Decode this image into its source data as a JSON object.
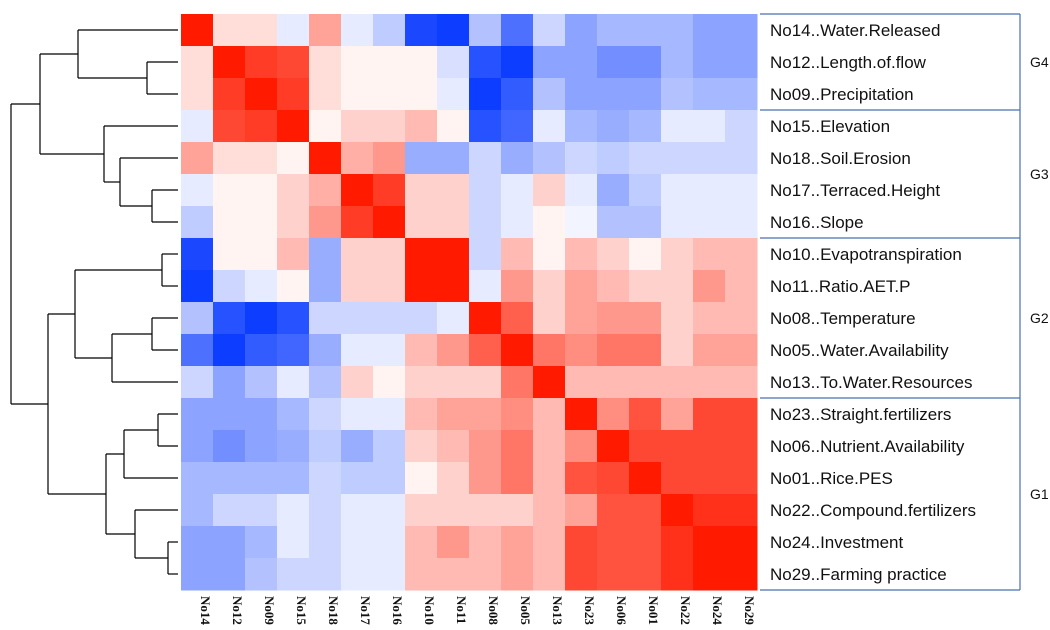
{
  "chart_data": {
    "type": "heatmap",
    "title": "",
    "xlabel": "",
    "ylabel": "",
    "colors": {
      "low": "#0033ff",
      "mid": "#ffffff",
      "high": "#ff1a00",
      "group_line": "#4a6fb5",
      "dendrogram": "#000000"
    },
    "row_labels": [
      "No14..Water.Released",
      "No12..Length.of.flow",
      "No09..Precipitation",
      "No15..Elevation",
      "No18..Soil.Erosion",
      "No17..Terraced.Height",
      "No16..Slope",
      "No10..Evapotranspiration",
      "No11..Ratio.AET.P",
      "No08..Temperature",
      "No05..Water.Availability",
      "No13..To.Water.Resources",
      "No23..Straight.fertilizers",
      "No06..Nutrient.Availability",
      "No01..Rice.PES",
      "No22..Compound.fertilizers",
      "No24..Investment",
      "No29..Farming practice"
    ],
    "col_labels": [
      "No14",
      "No12",
      "No09",
      "No15",
      "No18",
      "No17",
      "No16",
      "No10",
      "No11",
      "No08",
      "No05",
      "No13",
      "No23",
      "No06",
      "No01",
      "No22",
      "No24",
      "No29"
    ],
    "groups": [
      {
        "label": "G4",
        "start": 0,
        "end": 2
      },
      {
        "label": "G3",
        "start": 3,
        "end": 6
      },
      {
        "label": "G2",
        "start": 7,
        "end": 11
      },
      {
        "label": "G1",
        "start": 12,
        "end": 17
      }
    ],
    "values": [
      [
        1.0,
        0.15,
        0.15,
        -0.1,
        0.4,
        -0.1,
        -0.25,
        -0.9,
        -0.95,
        -0.3,
        -0.7,
        -0.2,
        -0.45,
        -0.35,
        -0.35,
        -0.35,
        -0.45,
        -0.45
      ],
      [
        0.15,
        1.0,
        0.85,
        0.8,
        0.15,
        0.05,
        0.05,
        0.05,
        -0.15,
        -0.85,
        -0.95,
        -0.45,
        -0.45,
        -0.55,
        -0.55,
        -0.35,
        -0.45,
        -0.45
      ],
      [
        0.15,
        0.85,
        1.0,
        0.85,
        0.15,
        0.05,
        0.05,
        0.05,
        -0.1,
        -0.95,
        -0.8,
        -0.3,
        -0.45,
        -0.45,
        -0.45,
        -0.3,
        -0.35,
        -0.35
      ],
      [
        -0.1,
        0.8,
        0.85,
        1.0,
        0.05,
        0.2,
        0.2,
        0.3,
        0.05,
        -0.85,
        -0.75,
        -0.1,
        -0.35,
        -0.4,
        -0.35,
        -0.1,
        -0.1,
        -0.2
      ],
      [
        0.4,
        0.15,
        0.15,
        0.05,
        1.0,
        0.35,
        0.45,
        -0.4,
        -0.4,
        -0.2,
        -0.4,
        -0.3,
        -0.2,
        -0.25,
        -0.2,
        -0.2,
        -0.2,
        -0.2
      ],
      [
        -0.1,
        0.05,
        0.05,
        0.2,
        0.35,
        1.0,
        0.85,
        0.2,
        0.2,
        -0.2,
        -0.1,
        0.2,
        -0.1,
        -0.4,
        -0.25,
        -0.1,
        -0.1,
        -0.1
      ],
      [
        -0.25,
        0.05,
        0.05,
        0.2,
        0.45,
        0.85,
        1.0,
        0.2,
        0.2,
        -0.2,
        -0.1,
        0.05,
        -0.05,
        -0.3,
        -0.3,
        -0.1,
        -0.1,
        -0.1
      ],
      [
        -0.9,
        0.05,
        0.05,
        0.3,
        -0.4,
        0.2,
        0.2,
        1.0,
        1.0,
        -0.2,
        0.3,
        0.05,
        0.3,
        0.2,
        0.05,
        0.2,
        0.3,
        0.3
      ],
      [
        -0.95,
        -0.2,
        -0.1,
        0.05,
        -0.4,
        0.2,
        0.2,
        1.0,
        1.0,
        -0.1,
        0.45,
        0.2,
        0.4,
        0.3,
        0.2,
        0.2,
        0.45,
        0.3
      ],
      [
        -0.3,
        -0.85,
        -0.95,
        -0.85,
        -0.2,
        -0.2,
        -0.2,
        -0.2,
        -0.1,
        1.0,
        0.7,
        0.2,
        0.4,
        0.45,
        0.45,
        0.2,
        0.3,
        0.3
      ],
      [
        -0.7,
        -0.95,
        -0.8,
        -0.75,
        -0.4,
        -0.1,
        -0.1,
        0.3,
        0.45,
        0.7,
        1.0,
        0.6,
        0.5,
        0.6,
        0.6,
        0.2,
        0.4,
        0.4
      ],
      [
        -0.2,
        -0.45,
        -0.3,
        -0.1,
        -0.3,
        0.2,
        0.05,
        0.2,
        0.2,
        0.2,
        0.6,
        1.0,
        0.3,
        0.3,
        0.3,
        0.3,
        0.3,
        0.3
      ],
      [
        -0.45,
        -0.45,
        -0.45,
        -0.35,
        -0.2,
        -0.1,
        -0.1,
        0.3,
        0.4,
        0.4,
        0.5,
        0.3,
        1.0,
        0.5,
        0.75,
        0.4,
        0.8,
        0.8
      ],
      [
        -0.45,
        -0.55,
        -0.45,
        -0.4,
        -0.25,
        -0.4,
        -0.25,
        0.2,
        0.3,
        0.45,
        0.6,
        0.3,
        0.5,
        1.0,
        0.8,
        0.8,
        0.8,
        0.8
      ],
      [
        -0.35,
        -0.35,
        -0.35,
        -0.35,
        -0.2,
        -0.25,
        -0.25,
        0.05,
        0.2,
        0.45,
        0.6,
        0.3,
        0.75,
        0.8,
        1.0,
        0.8,
        0.8,
        0.8
      ],
      [
        -0.35,
        -0.2,
        -0.2,
        -0.1,
        -0.2,
        -0.1,
        -0.1,
        0.2,
        0.2,
        0.2,
        0.2,
        0.3,
        0.4,
        0.75,
        0.75,
        1.0,
        0.9,
        0.9
      ],
      [
        -0.45,
        -0.45,
        -0.35,
        -0.1,
        -0.2,
        -0.1,
        -0.1,
        0.3,
        0.45,
        0.3,
        0.4,
        0.3,
        0.8,
        0.75,
        0.75,
        0.9,
        1.0,
        1.0
      ],
      [
        -0.45,
        -0.45,
        -0.3,
        -0.2,
        -0.2,
        -0.1,
        -0.1,
        0.3,
        0.3,
        0.3,
        0.4,
        0.3,
        0.8,
        0.75,
        0.75,
        0.9,
        1.0,
        1.0
      ]
    ]
  }
}
